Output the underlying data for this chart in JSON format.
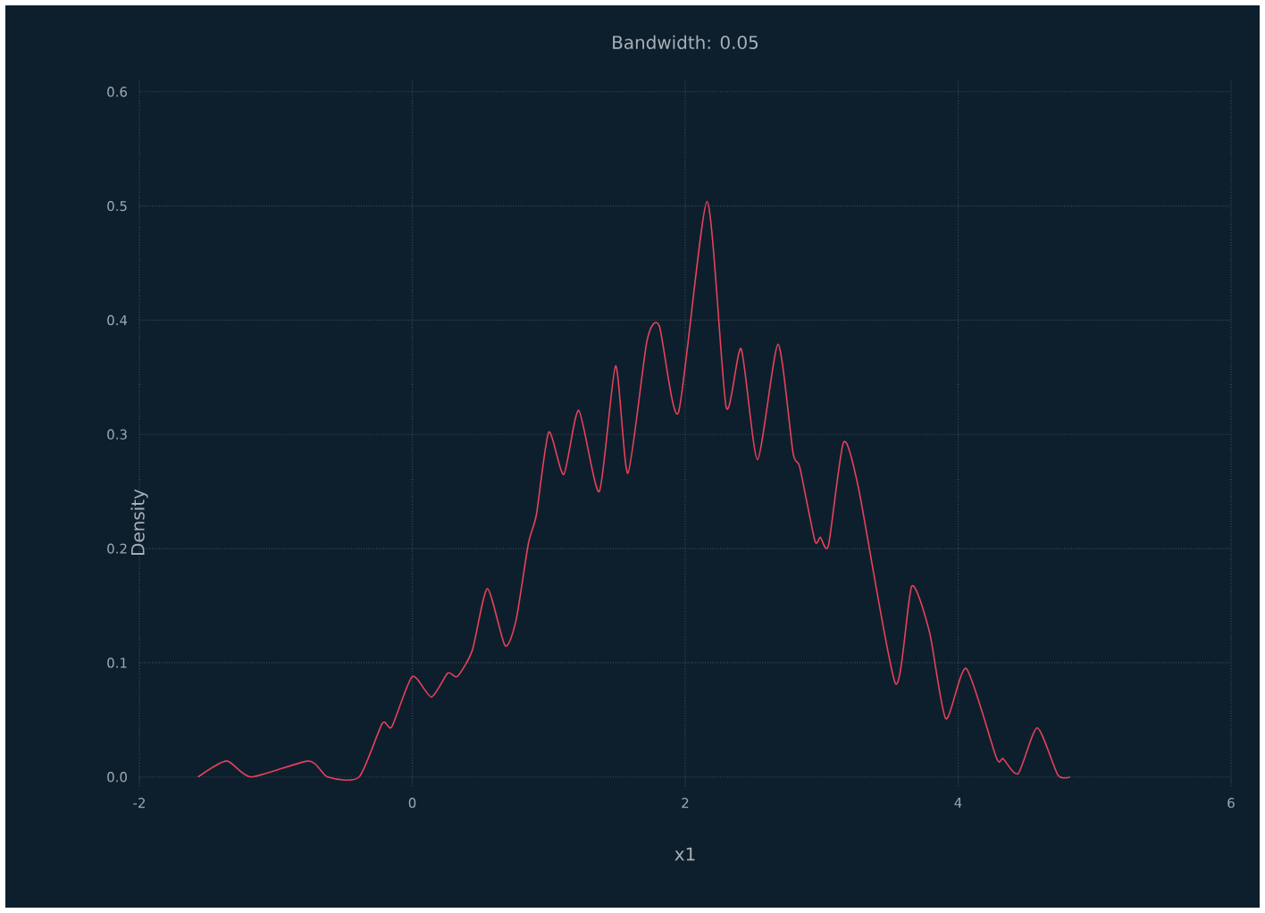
{
  "chart_data": {
    "type": "line",
    "title": "Bandwidth: 0.05",
    "xlabel": "x1",
    "ylabel": "Density",
    "xlim": [
      -2,
      6
    ],
    "ylim": [
      -0.008,
      0.61
    ],
    "xticks": [
      -2,
      0,
      2,
      4,
      6
    ],
    "yticks": [
      {
        "value": 0,
        "label": "0.0"
      },
      0.1,
      0.2,
      0.3,
      0.4,
      0.5,
      0.6
    ],
    "grid": true,
    "line_style": "solid",
    "series": [
      {
        "color": "#e8415a",
        "x": [
          -1.57,
          -1.36,
          -1.18,
          -0.76,
          -0.62,
          -0.39,
          -0.22,
          -0.15,
          0.0,
          0.14,
          0.26,
          0.33,
          0.44,
          0.55,
          0.68,
          0.76,
          0.85,
          0.91,
          1.0,
          1.11,
          1.22,
          1.37,
          1.49,
          1.58,
          1.72,
          1.81,
          1.95,
          2.16,
          2.3,
          2.41,
          2.53,
          2.68,
          2.79,
          2.84,
          2.95,
          2.99,
          3.05,
          3.16,
          3.27,
          3.54,
          3.66,
          3.79,
          3.91,
          4.06,
          4.28,
          4.33,
          4.44,
          4.58,
          4.73,
          4.82
        ],
        "values": [
          0,
          0.014,
          0,
          0.014,
          0,
          0,
          0.047,
          0.044,
          0.088,
          0.07,
          0.091,
          0.088,
          0.111,
          0.165,
          0.115,
          0.137,
          0.204,
          0.23,
          0.302,
          0.265,
          0.321,
          0.25,
          0.36,
          0.266,
          0.382,
          0.395,
          0.319,
          0.504,
          0.324,
          0.375,
          0.278,
          0.379,
          0.284,
          0.271,
          0.207,
          0.21,
          0.203,
          0.293,
          0.253,
          0.082,
          0.167,
          0.127,
          0.051,
          0.095,
          0.017,
          0.016,
          0.003,
          0.043,
          0.002,
          0
        ]
      }
    ]
  }
}
